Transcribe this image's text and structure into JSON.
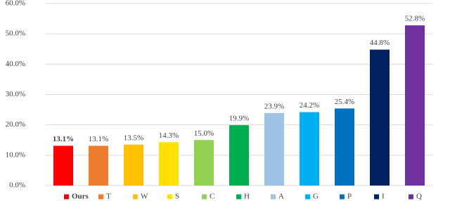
{
  "chart_data": {
    "type": "bar",
    "categories": [
      "Ours",
      "T",
      "W",
      "S",
      "C",
      "H",
      "A",
      "G",
      "P",
      "I",
      "Q"
    ],
    "values": [
      13.1,
      13.1,
      13.5,
      14.3,
      15.0,
      19.9,
      23.9,
      24.2,
      25.4,
      44.8,
      52.8
    ],
    "value_labels": [
      "13.1%",
      "13.1%",
      "13.5%",
      "14.3%",
      "15.0%",
      "19.9%",
      "23.9%",
      "24.2%",
      "25.4%",
      "44.8%",
      "52.8%"
    ],
    "colors": [
      "#ff0000",
      "#ed7d31",
      "#ffc000",
      "#ffe100",
      "#92d050",
      "#00b050",
      "#9dc3e6",
      "#00b0f0",
      "#0070c0",
      "#002060",
      "#7030a0"
    ],
    "ylim": [
      0,
      60
    ],
    "yticks": [
      {
        "value": 0,
        "label": "0.0%"
      },
      {
        "value": 10,
        "label": "10.0%"
      },
      {
        "value": 20,
        "label": "20.0%"
      },
      {
        "value": 30,
        "label": "30.0%"
      },
      {
        "value": 40,
        "label": "40.0%"
      },
      {
        "value": 50,
        "label": "50.0%"
      },
      {
        "value": 60,
        "label": "60.0%"
      }
    ],
    "grid": true,
    "legend": "bottom"
  }
}
